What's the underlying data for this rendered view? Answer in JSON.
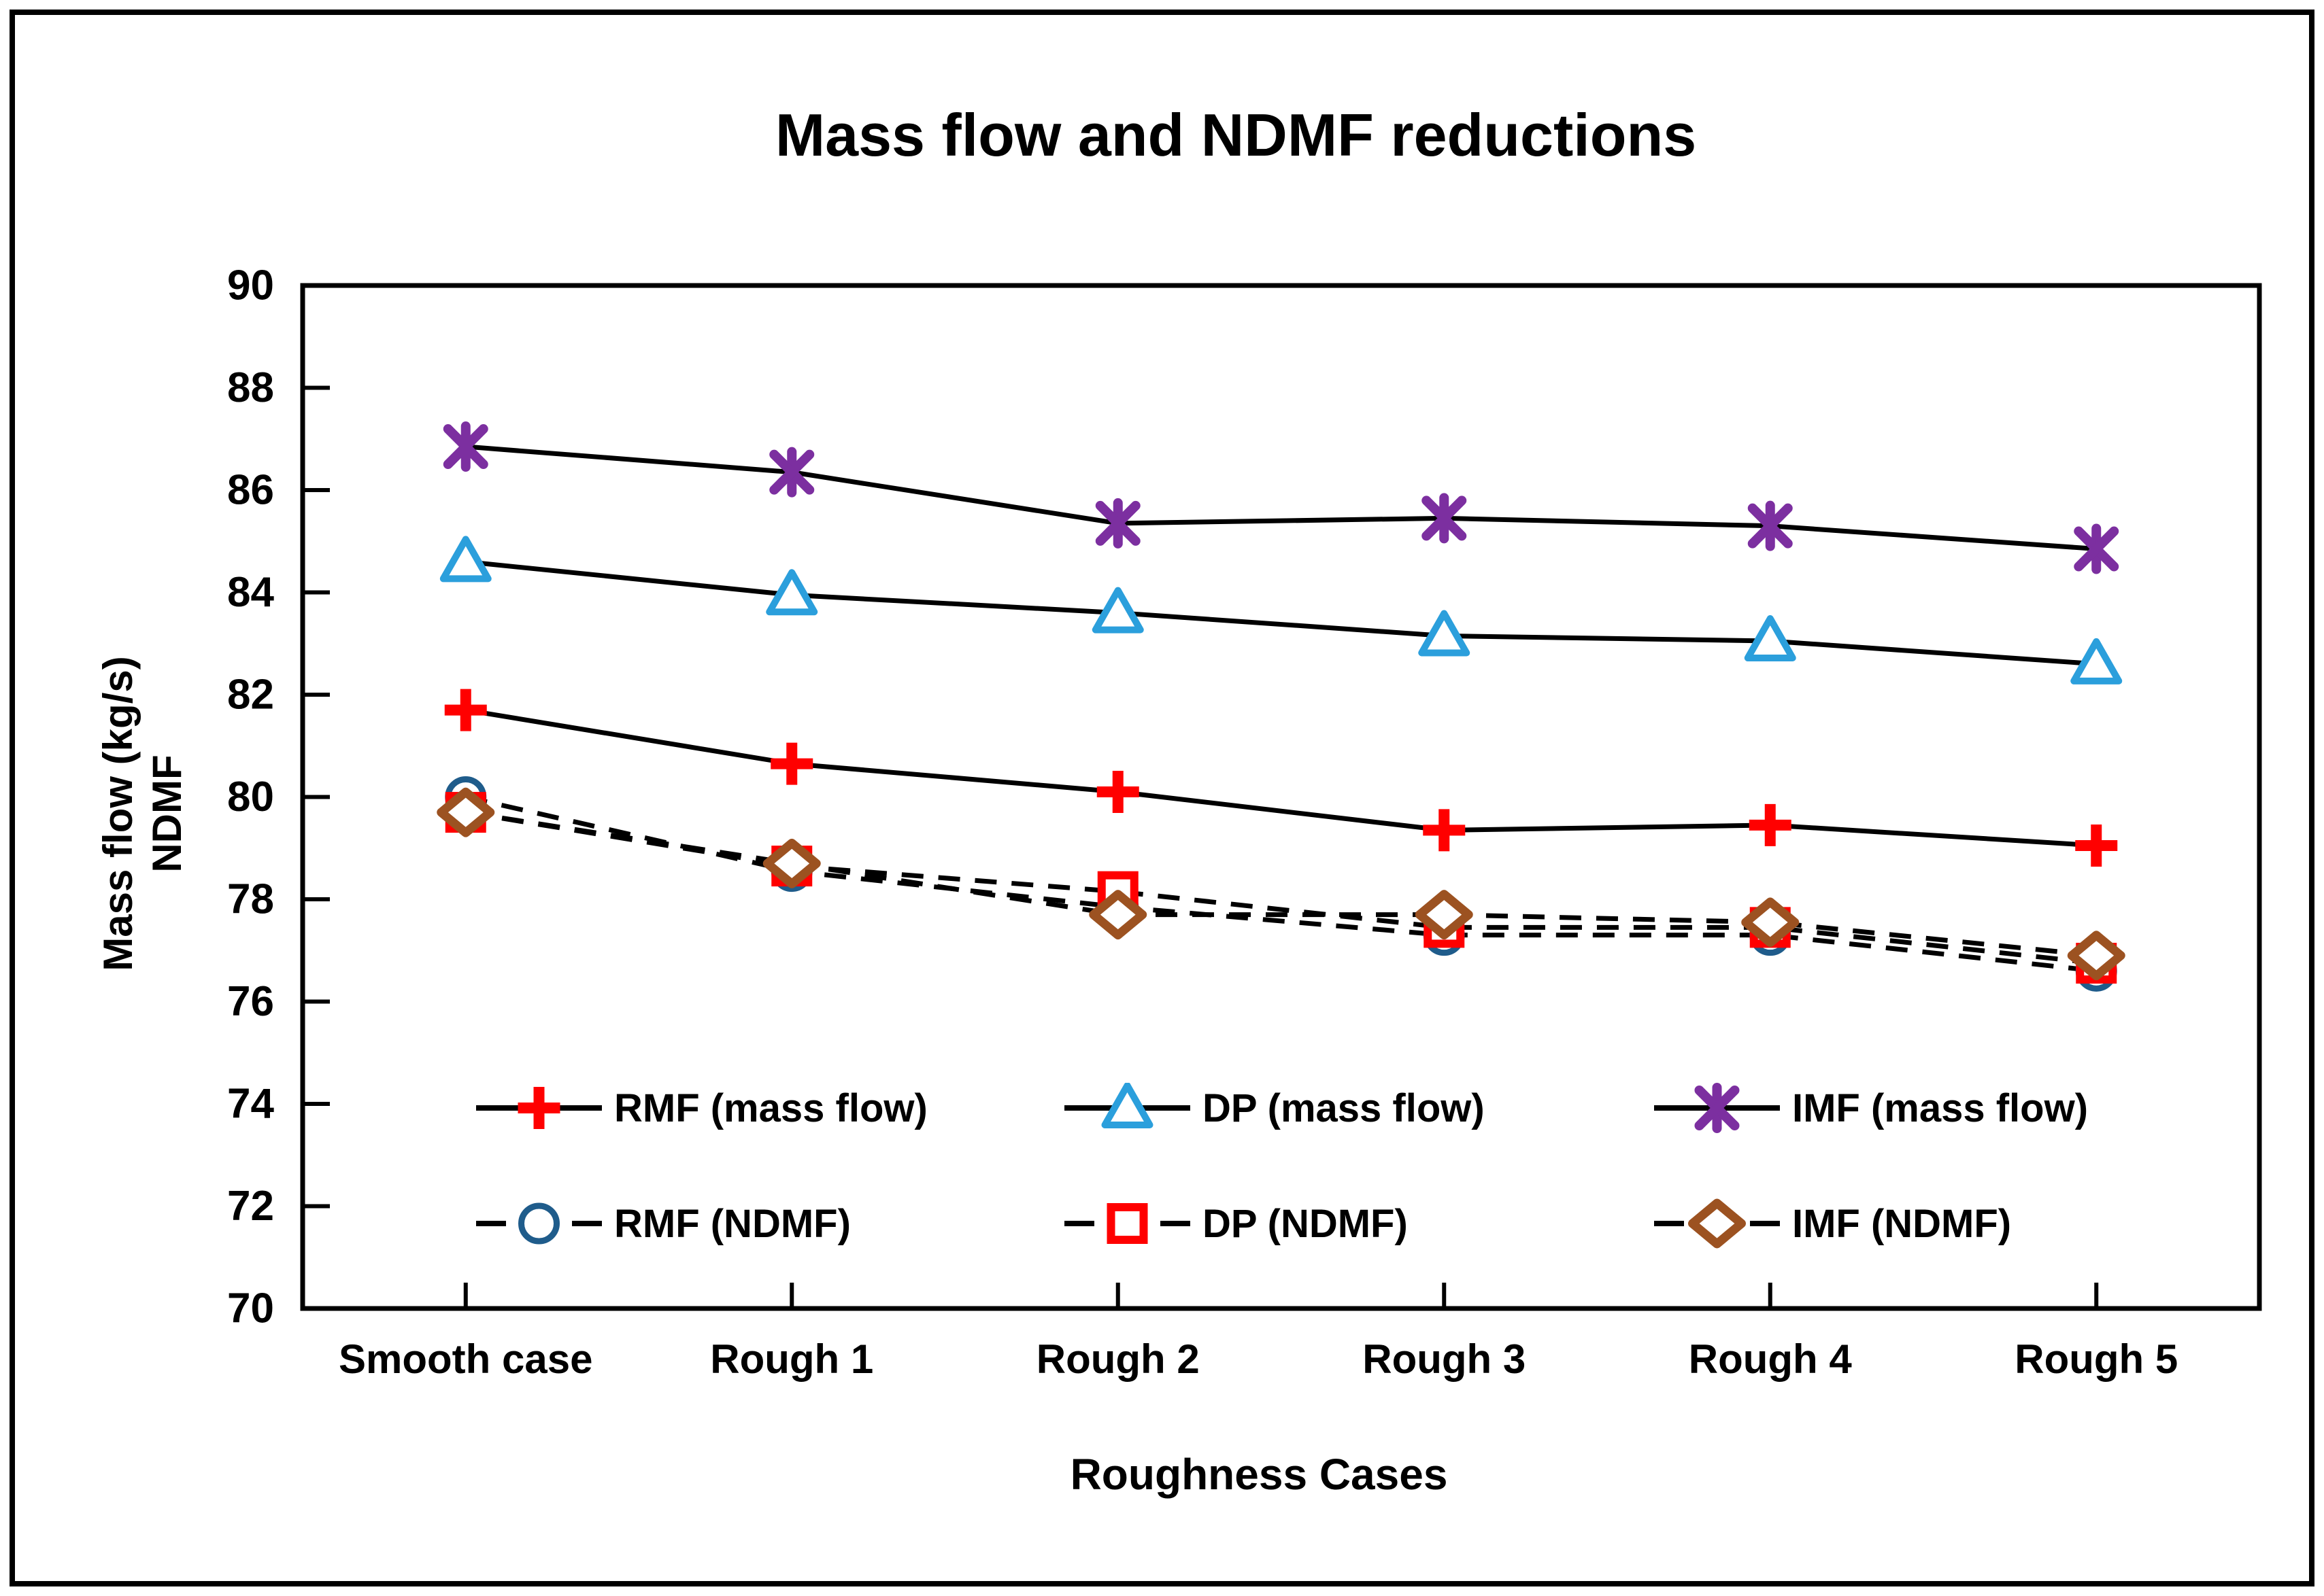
{
  "figure": {
    "title": "Mass flow and NDMF reductions"
  },
  "axes": {
    "y_title_line1": "Mass flow (kg/s)",
    "y_title_line2": "NDMF",
    "x_title": "Roughness Cases"
  },
  "colors": {
    "line_black": "#000000",
    "rmf_marker": "#FF0000",
    "dp_marker": "#2B9FDC",
    "imf_marker": "#7C2FA0",
    "rmf_ndmf_marker": "#1F5C8B",
    "dp_ndmf_marker": "#FF0000",
    "imf_ndmf_marker": "#9C5221"
  },
  "chart_data": {
    "type": "line",
    "title": "Mass flow and NDMF reductions",
    "xlabel": "Roughness Cases",
    "ylabel": "Mass flow (kg/s) / NDMF",
    "ylim": [
      70,
      90
    ],
    "y_ticks": [
      70,
      72,
      74,
      76,
      78,
      80,
      82,
      84,
      86,
      88,
      90
    ],
    "grid": false,
    "legend_position": "inside-bottom-two-rows",
    "categories": [
      "Smooth case",
      "Rough 1",
      "Rough 2",
      "Rough 3",
      "Rough 4",
      "Rough 5"
    ],
    "series": [
      {
        "name": "RMF (mass flow)",
        "line": "solid",
        "line_color": "#000000",
        "marker": "plus",
        "marker_color": "#FF0000",
        "values": [
          81.7,
          80.65,
          80.1,
          79.35,
          79.45,
          79.05
        ]
      },
      {
        "name": "DP (mass flow)",
        "line": "solid",
        "line_color": "#000000",
        "marker": "triangle",
        "marker_color": "#2B9FDC",
        "values": [
          84.6,
          83.95,
          83.6,
          83.15,
          83.05,
          82.6
        ]
      },
      {
        "name": "IMF (mass flow)",
        "line": "solid",
        "line_color": "#000000",
        "marker": "asterisk",
        "marker_color": "#7C2FA0",
        "values": [
          86.85,
          86.35,
          85.35,
          85.45,
          85.3,
          84.85
        ]
      },
      {
        "name": "RMF (NDMF)",
        "line": "dashed",
        "line_color": "#000000",
        "marker": "circle",
        "marker_color": "#1F5C8B",
        "values": [
          80.0,
          78.55,
          77.85,
          77.3,
          77.3,
          76.6
        ]
      },
      {
        "name": "DP (NDMF)",
        "line": "dashed",
        "line_color": "#000000",
        "marker": "square",
        "marker_color": "#FF0000",
        "values": [
          79.7,
          78.65,
          78.15,
          77.45,
          77.45,
          76.75
        ]
      },
      {
        "name": "IMF (NDMF)",
        "line": "dashed",
        "line_color": "#000000",
        "marker": "diamond",
        "marker_color": "#9C5221",
        "values": [
          79.7,
          78.7,
          77.7,
          77.7,
          77.55,
          76.9
        ]
      }
    ]
  }
}
